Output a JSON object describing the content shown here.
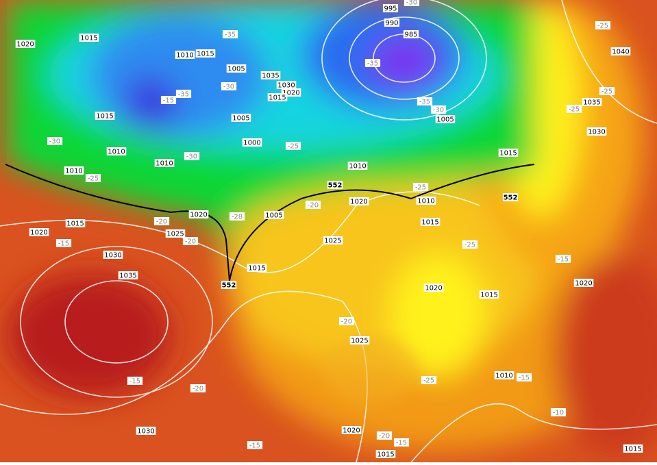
{
  "isobar_labels": [
    "1020",
    "1015",
    "1010",
    "1015",
    "1005",
    "1035",
    "1030",
    "1020",
    "1015",
    "995",
    "990",
    "985",
    "1005",
    "1015",
    "1005",
    "1000",
    "1010",
    "1010",
    "1010",
    "1010",
    "1015",
    "1010",
    "1020",
    "1015",
    "1020",
    "1005",
    "1015",
    "1020",
    "1025",
    "1025",
    "1030",
    "1035",
    "1015",
    "1020",
    "1015",
    "1020",
    "1025",
    "1010",
    "1030",
    "1020",
    "1015",
    "1015",
    "1040",
    "1035",
    "1030"
  ],
  "temperature_labels": [
    "-30",
    "-35",
    "-30",
    "-35",
    "-15",
    "-35",
    "-35",
    "-30",
    "-30",
    "-25",
    "-25",
    "-30",
    "-25",
    "-20",
    "-20",
    "-20",
    "-15",
    "-28",
    "-25",
    "-15",
    "-20",
    "-25",
    "-20",
    "-15",
    "-15",
    "-10",
    "-20",
    "-15",
    "-15",
    "-25",
    "-25",
    "-25"
  ],
  "geopotential_labels": [
    "552",
    "552",
    "552"
  ]
}
